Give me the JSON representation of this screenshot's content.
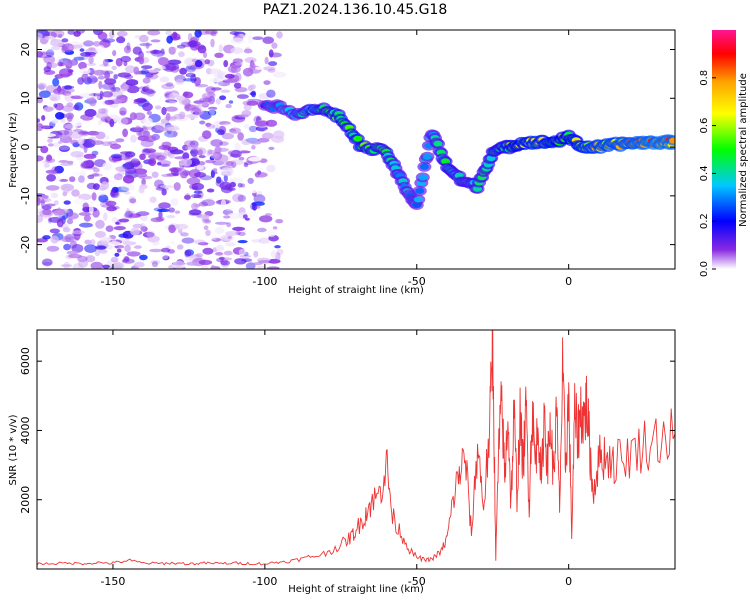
{
  "figure_title": "PAZ1.2024.136.10.45.G18",
  "chart_data": [
    {
      "type": "heatmap",
      "title": "",
      "xlabel": "Height of straight line (km)",
      "ylabel": "Frequency (Hz)",
      "xlim": [
        -175,
        35
      ],
      "ylim": [
        -25,
        24
      ],
      "xticks": [
        -150,
        -100,
        -50,
        0
      ],
      "xtick_labels": [
        "-150",
        "-100",
        "-50",
        "0"
      ],
      "yticks": [
        20,
        10,
        0,
        -10,
        -20
      ],
      "ytick_labels": [
        "20",
        "10",
        "0",
        "-10",
        "-20"
      ],
      "colorbar": {
        "label": "Normalized spectral amplitude",
        "range": [
          0.0,
          1.0
        ],
        "ticks": [
          0.0,
          0.2,
          0.4,
          0.6,
          0.8
        ],
        "tick_labels": [
          "0.0",
          "0.2",
          "0.4",
          "0.6",
          "0.8"
        ],
        "colormap": "gist_rainbow_r",
        "stops": [
          "#ffffff",
          "#8a2be2",
          "#0000ff",
          "#00c8ff",
          "#00ff00",
          "#ffff00",
          "#ffa500",
          "#ff0000",
          "#ff1493"
        ]
      },
      "noise_region": {
        "x": [
          -175,
          -95
        ],
        "y": [
          -25,
          24
        ],
        "amplitude": 0.15
      },
      "signal_track": [
        {
          "x": -100,
          "y": 9,
          "a": 0.25
        },
        {
          "x": -90,
          "y": 7,
          "a": 0.35
        },
        {
          "x": -82,
          "y": 8,
          "a": 0.45
        },
        {
          "x": -75,
          "y": 6,
          "a": 0.5
        },
        {
          "x": -68,
          "y": 0,
          "a": 0.5
        },
        {
          "x": -60,
          "y": -1,
          "a": 0.45
        },
        {
          "x": -55,
          "y": -7,
          "a": 0.35
        },
        {
          "x": -50,
          "y": -12,
          "a": 0.3
        },
        {
          "x": -45,
          "y": 3,
          "a": 0.35
        },
        {
          "x": -40,
          "y": -4,
          "a": 0.45
        },
        {
          "x": -35,
          "y": -7,
          "a": 0.4
        },
        {
          "x": -30,
          "y": -8,
          "a": 0.4
        },
        {
          "x": -25,
          "y": -1,
          "a": 0.45
        },
        {
          "x": -20,
          "y": 0,
          "a": 0.5
        },
        {
          "x": -15,
          "y": 1,
          "a": 0.6
        },
        {
          "x": -10,
          "y": 1,
          "a": 0.65
        },
        {
          "x": -5,
          "y": 1,
          "a": 0.6
        },
        {
          "x": 0,
          "y": 2,
          "a": 0.55
        },
        {
          "x": 5,
          "y": 0,
          "a": 0.65
        },
        {
          "x": 10,
          "y": 0,
          "a": 0.7
        },
        {
          "x": 15,
          "y": 0.5,
          "a": 0.72
        },
        {
          "x": 20,
          "y": 0.8,
          "a": 0.75
        },
        {
          "x": 25,
          "y": 1,
          "a": 0.78
        },
        {
          "x": 30,
          "y": 1,
          "a": 0.8
        },
        {
          "x": 35,
          "y": 1,
          "a": 0.8
        }
      ]
    },
    {
      "type": "line",
      "title": "",
      "xlabel": "Height of straight line (km)",
      "ylabel": "SNR (10 * v/v)",
      "xlim": [
        -175,
        35
      ],
      "ylim": [
        0,
        6900
      ],
      "xticks": [
        -150,
        -100,
        -50,
        0
      ],
      "xtick_labels": [
        "-150",
        "-100",
        "-50",
        "0"
      ],
      "yticks": [
        2000,
        4000,
        6000
      ],
      "ytick_labels": [
        "2000",
        "4000",
        "6000"
      ],
      "line_color": "#ee3333",
      "series": [
        {
          "x": [
            -175,
            -170,
            -165,
            -160,
            -155,
            -150,
            -145,
            -140,
            -135,
            -130,
            -125,
            -120,
            -115,
            -110,
            -105,
            -100,
            -95,
            -90,
            -85,
            -80,
            -75,
            -72,
            -70,
            -67,
            -65,
            -62,
            -60,
            -58,
            -55,
            -52,
            -50,
            -47,
            -45,
            -42,
            -40,
            -38,
            -36,
            -34,
            -32,
            -30,
            -28,
            -26,
            -25,
            -24,
            -23,
            -22,
            -21,
            -20,
            -19,
            -18,
            -17,
            -16,
            -15,
            -14,
            -13,
            -12,
            -11,
            -10,
            -9,
            -8,
            -7,
            -6,
            -5,
            -4,
            -3,
            -2,
            -1,
            0,
            1,
            2,
            3,
            4,
            5,
            6,
            7,
            8,
            10,
            12,
            15,
            20,
            25,
            30,
            35
          ],
          "y": [
            150,
            160,
            170,
            160,
            180,
            170,
            250,
            170,
            160,
            170,
            150,
            170,
            160,
            170,
            160,
            150,
            200,
            250,
            350,
            450,
            700,
            900,
            1100,
            1600,
            1900,
            2200,
            3100,
            1500,
            1000,
            500,
            350,
            250,
            300,
            500,
            900,
            2000,
            2800,
            3200,
            1000,
            3600,
            1800,
            4000,
            6800,
            300,
            3500,
            4800,
            2500,
            4600,
            1800,
            4500,
            2100,
            4300,
            3000,
            4600,
            1800,
            4700,
            3000,
            4400,
            2400,
            4600,
            3000,
            4200,
            2700,
            4500,
            1800,
            5500,
            3000,
            5000,
            1000,
            4500,
            3800,
            4600,
            4300,
            4800,
            3400,
            2200,
            3200,
            3300,
            3100,
            3300,
            3600,
            3800,
            3900
          ]
        }
      ]
    }
  ]
}
